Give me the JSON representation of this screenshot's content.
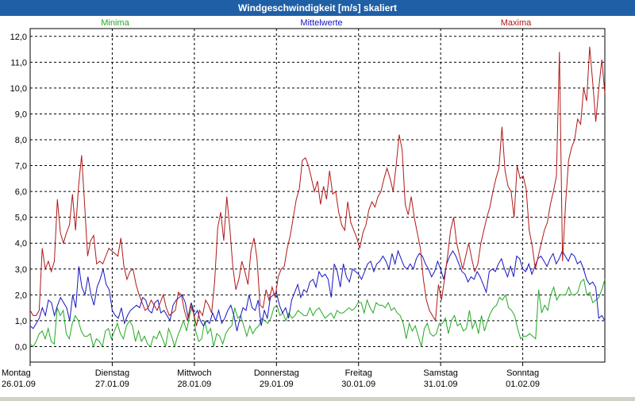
{
  "window": {
    "title": "Windgeschwindigkeit [m/s] skaliert"
  },
  "chart_data": {
    "type": "line",
    "title": "Windgeschwindigkeit [m/s] skaliert",
    "ylim": [
      -0.6,
      12.3
    ],
    "y_ticks": [
      "0,0",
      "1,0",
      "2,0",
      "3,0",
      "4,0",
      "5,0",
      "6,0",
      "7,0",
      "8,0",
      "9,0",
      "10,0",
      "11,0",
      "12,0"
    ],
    "grid": true,
    "x_range": [
      0,
      7
    ],
    "days": [
      {
        "weekday": "Montag",
        "date": "26.01.09"
      },
      {
        "weekday": "Dienstag",
        "date": "27.01.09"
      },
      {
        "weekday": "Mittwoch",
        "date": "28.01.09"
      },
      {
        "weekday": "Donnerstag",
        "date": "29.01.09"
      },
      {
        "weekday": "Freitag",
        "date": "30.01.09"
      },
      {
        "weekday": "Samstag",
        "date": "31.01.09"
      },
      {
        "weekday": "Sonntag",
        "date": "01.02.09"
      }
    ],
    "series": [
      {
        "name": "Minima",
        "color": "#22aa22",
        "values": [
          0.1,
          0.0,
          0.2,
          0.5,
          0.6,
          0.3,
          0.7,
          0.2,
          0.1,
          1.5,
          1.2,
          1.4,
          0.5,
          0.3,
          0.9,
          1.2,
          1.0,
          0.6,
          0.4,
          0.4,
          0.5,
          0.0,
          0.3,
          0.2,
          0.0,
          0.6,
          0.7,
          0.3,
          0.6,
          0.9,
          0.5,
          0.3,
          0.8,
          1.0,
          0.8,
          0.2,
          0.6,
          0.2,
          0.4,
          0.1,
          0.0,
          0.4,
          0.3,
          0.6,
          0.3,
          0.0,
          0.7,
          0.4,
          0.0,
          0.4,
          0.7,
          1.0,
          0.6,
          1.2,
          1.6,
          0.6,
          0.2,
          0.3,
          1.0,
          0.5,
          0.7,
          0.0,
          0.5,
          0.4,
          0.1,
          0.5,
          0.7,
          0.8,
          1.5,
          1.1,
          1.2,
          0.8,
          0.4,
          0.8,
          0.5,
          0.7,
          0.8,
          1.1,
          1.0,
          0.9,
          1.1,
          1.5,
          1.6,
          1.2,
          1.3,
          1.0,
          1.3,
          1.1,
          1.2,
          1.4,
          1.3,
          1.2,
          1.2,
          1.5,
          1.2,
          1.4,
          1.5,
          1.3,
          1.1,
          1.2,
          1.3,
          1.1,
          1.4,
          1.3,
          1.3,
          1.4,
          1.5,
          1.4,
          1.5,
          1.7,
          1.7,
          1.3,
          1.8,
          1.5,
          1.3,
          1.7,
          1.6,
          1.6,
          1.5,
          1.7,
          1.4,
          1.5,
          1.3,
          1.2,
          0.9,
          0.3,
          0.9,
          0.6,
          0.8,
          0.4,
          0.0,
          0.7,
          0.9,
          0.5,
          0.4,
          0.5,
          0.9,
          0.9,
          1.1,
          0.5,
          1.0,
          1.2,
          0.8,
          0.9,
          0.6,
          0.7,
          1.4,
          0.7,
          1.0,
          0.5,
          1.2,
          0.6,
          1.0,
          1.3,
          1.5,
          1.6,
          1.9,
          1.8,
          2.0,
          1.5,
          1.4,
          1.2,
          0.7,
          0.3,
          0.4,
          0.4,
          0.5,
          0.4,
          0.3,
          2.2,
          1.3,
          1.6,
          1.4,
          2.0,
          2.3,
          1.8,
          2.0,
          2.0,
          2.0,
          2.3,
          2.0,
          2.0,
          2.1,
          2.5,
          2.6,
          2.0,
          2.1,
          1.7,
          1.8,
          1.9,
          2.2,
          2.6
        ]
      },
      {
        "name": "Mittelwerte",
        "color": "#1515c0",
        "values": [
          0.8,
          0.7,
          0.9,
          1.1,
          1.5,
          1.2,
          1.8,
          1.7,
          1.2,
          1.6,
          1.9,
          1.7,
          1.5,
          1.0,
          2.0,
          1.5,
          3.1,
          2.3,
          2.0,
          2.7,
          2.0,
          1.6,
          2.3,
          2.6,
          3.0,
          2.4,
          2.2,
          1.4,
          1.2,
          1.1,
          1.5,
          0.9,
          1.2,
          1.4,
          1.5,
          1.6,
          1.5,
          1.9,
          1.8,
          1.4,
          1.3,
          1.7,
          1.8,
          1.3,
          1.4,
          1.2,
          1.0,
          1.6,
          1.8,
          1.9,
          2.0,
          1.7,
          1.1,
          1.7,
          1.2,
          1.4,
          1.0,
          0.8,
          1.0,
          0.9,
          1.3,
          1.0,
          1.4,
          0.9,
          1.1,
          1.4,
          1.6,
          1.2,
          0.6,
          1.1,
          1.5,
          1.4,
          2.0,
          1.5,
          1.4,
          1.8,
          0.8,
          1.4,
          1.1,
          1.9,
          2.0,
          2.1,
          1.6,
          1.3,
          1.5,
          1.1,
          1.8,
          2.1,
          2.4,
          1.9,
          2.2,
          2.1,
          2.5,
          2.6,
          2.3,
          2.9,
          2.7,
          2.8,
          2.6,
          1.9,
          3.2,
          2.9,
          2.3,
          3.2,
          2.7,
          2.5,
          3.0,
          2.9,
          2.8,
          2.6,
          2.9,
          3.2,
          3.3,
          2.9,
          3.2,
          3.3,
          3.5,
          3.3,
          3.0,
          3.6,
          3.2,
          3.7,
          3.4,
          3.1,
          3.0,
          3.2,
          3.0,
          3.4,
          3.6,
          3.5,
          3.2,
          3.0,
          2.7,
          2.9,
          3.3,
          3.0,
          2.6,
          3.2,
          3.5,
          3.7,
          3.5,
          3.2,
          2.9,
          2.8,
          2.5,
          2.7,
          2.6,
          2.9,
          2.7,
          2.4,
          2.1,
          2.9,
          3.0,
          2.9,
          3.2,
          3.4,
          3.0,
          2.7,
          3.1,
          2.7,
          3.5,
          3.4,
          3.0,
          2.9,
          3.2,
          2.8,
          3.1,
          3.4,
          3.5,
          3.3,
          3.1,
          3.4,
          3.6,
          3.2,
          3.4,
          3.7,
          3.5,
          3.3,
          3.6,
          3.5,
          3.2,
          3.3,
          3.0,
          2.6,
          2.4,
          2.5,
          2.3,
          1.1,
          1.2,
          1.0
        ]
      },
      {
        "name": "Maxima",
        "color": "#b01818",
        "values": [
          1.4,
          1.2,
          1.2,
          1.4,
          3.8,
          3.0,
          3.3,
          2.9,
          3.3,
          5.7,
          4.4,
          4.0,
          4.4,
          4.7,
          5.9,
          4.5,
          6.2,
          7.4,
          5.5,
          3.5,
          4.1,
          4.3,
          3.2,
          3.3,
          3.2,
          3.5,
          3.8,
          3.7,
          3.6,
          3.5,
          4.2,
          3.1,
          2.6,
          2.9,
          3.0,
          2.4,
          2.0,
          1.7,
          1.4,
          1.5,
          1.8,
          1.6,
          1.4,
          1.7,
          2.0,
          1.5,
          1.2,
          1.3,
          1.4,
          2.1,
          2.0,
          1.4,
          1.0,
          1.6,
          1.3,
          0.8,
          1.4,
          1.2,
          1.8,
          1.6,
          1.3,
          2.5,
          4.6,
          5.2,
          4.1,
          5.8,
          4.6,
          3.1,
          2.2,
          2.6,
          3.3,
          2.9,
          2.4,
          3.7,
          4.2,
          3.4,
          1.6,
          1.5,
          2.2,
          1.8,
          2.3,
          1.9,
          2.7,
          3.0,
          3.1,
          3.8,
          4.3,
          5.0,
          5.7,
          6.1,
          7.2,
          7.3,
          7.0,
          6.5,
          6.0,
          6.4,
          5.5,
          6.2,
          5.7,
          6.8,
          5.9,
          6.0,
          5.2,
          4.7,
          4.5,
          5.6,
          4.8,
          4.5,
          4.2,
          3.8,
          4.4,
          4.7,
          5.3,
          5.6,
          5.4,
          5.8,
          6.0,
          6.5,
          6.9,
          6.5,
          6.0,
          7.0,
          8.2,
          7.6,
          5.5,
          5.1,
          5.8,
          5.0,
          4.4,
          3.8,
          2.6,
          1.8,
          1.4,
          1.2,
          1.0,
          2.4,
          1.8,
          2.6,
          3.5,
          4.5,
          5.0,
          4.0,
          3.5,
          3.0,
          3.5,
          4.0,
          3.4,
          2.9,
          3.2,
          4.0,
          4.5,
          5.0,
          5.4,
          6.0,
          6.5,
          6.9,
          8.5,
          6.8,
          6.2,
          6.0,
          5.0,
          7.0,
          6.5,
          6.6,
          6.1,
          4.5,
          3.9,
          3.0,
          3.5,
          4.0,
          4.5,
          4.8,
          5.5,
          6.0,
          6.6,
          11.4,
          3.3,
          5.5,
          7.2,
          7.7,
          8.0,
          8.8,
          8.6,
          10.0,
          9.5,
          11.6,
          10.2,
          8.7,
          10.0,
          11.1,
          9.8
        ]
      }
    ]
  }
}
